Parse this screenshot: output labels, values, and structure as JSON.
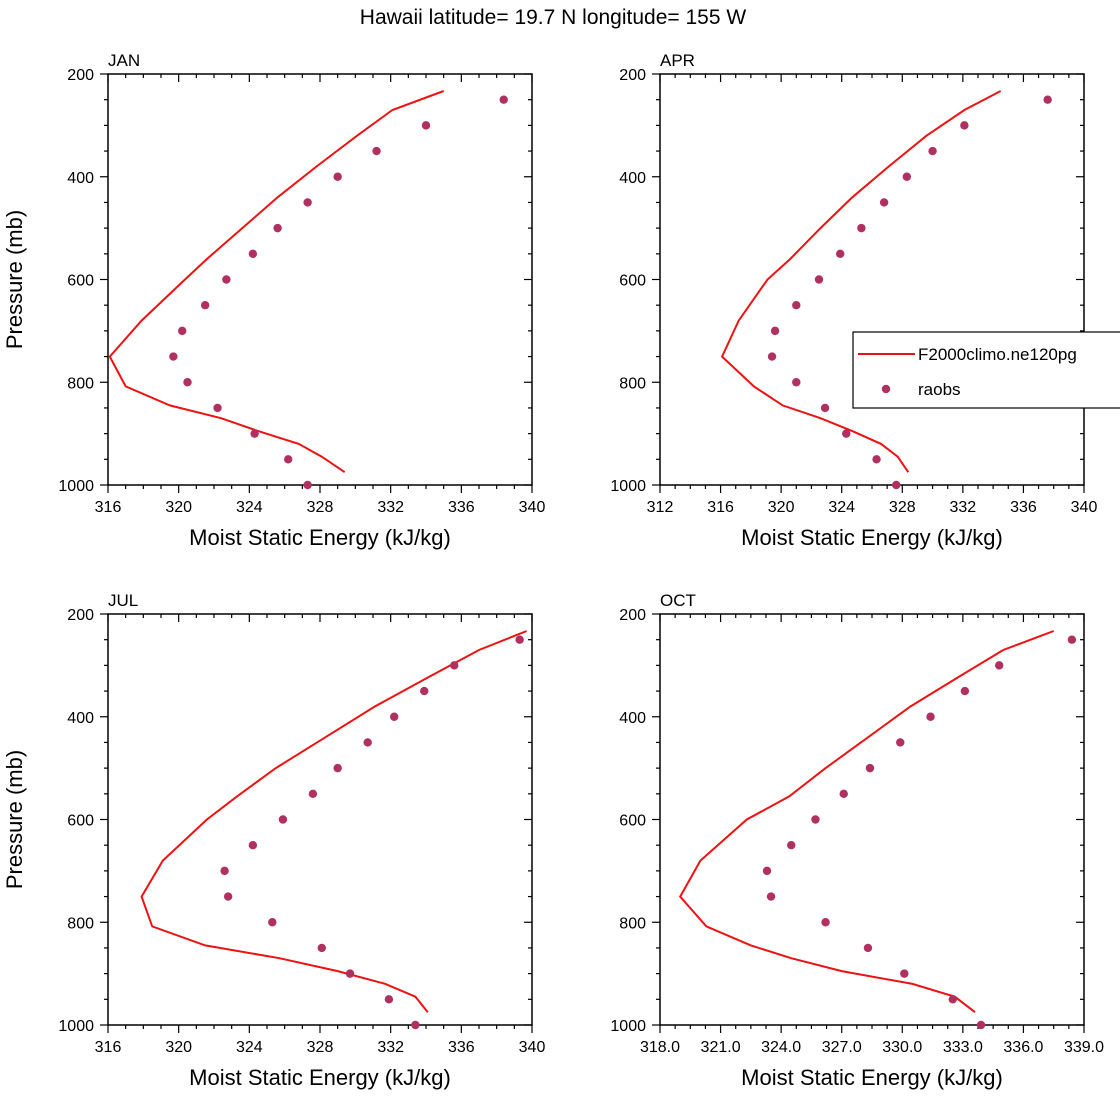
{
  "title": "Hawaii  latitude= 19.7 N longitude= 155 W",
  "colors": {
    "model": "#ee1111",
    "obs": "#b03060"
  },
  "legend": {
    "placement": "right-middle of APR panel",
    "model_label": "F2000climo.ne120pg",
    "obs_label": "raobs"
  },
  "chart_data": [
    {
      "type": "line",
      "title": "JAN",
      "xlabel": "Moist Static Energy (kJ/kg)",
      "ylabel": "Pressure (mb)",
      "xlim": [
        316,
        340
      ],
      "ylim": [
        200,
        1000
      ],
      "y_inverted": true,
      "xticks": [
        "316",
        "320",
        "324",
        "328",
        "332",
        "336",
        "340"
      ],
      "xtick_values": [
        316,
        320,
        324,
        328,
        332,
        336,
        340
      ],
      "yticks": [
        "200",
        "400",
        "600",
        "800",
        "1000"
      ],
      "ytick_values": [
        200,
        400,
        600,
        800,
        1000
      ],
      "series": [
        {
          "name": "F2000climo.ne120pg",
          "kind": "line",
          "x": [
            335.0,
            332.1,
            330.1,
            327.8,
            325.6,
            323.6,
            321.6,
            320.2,
            317.9,
            316.1,
            317.0,
            319.5,
            322.4,
            324.5,
            326.8,
            328.1,
            329.4
          ],
          "y": [
            233,
            270,
            320,
            380,
            440,
            500,
            560,
            605,
            680,
            750,
            808,
            845,
            870,
            895,
            920,
            945,
            975
          ]
        },
        {
          "name": "raobs",
          "kind": "scatter",
          "x": [
            338.4,
            334.0,
            331.2,
            329.0,
            327.3,
            325.6,
            324.2,
            322.7,
            321.5,
            320.2,
            319.7,
            320.5,
            322.2,
            324.3,
            326.2,
            327.3
          ],
          "y": [
            250,
            300,
            350,
            400,
            450,
            500,
            550,
            600,
            650,
            700,
            750,
            800,
            850,
            900,
            950,
            1000
          ]
        }
      ]
    },
    {
      "type": "line",
      "title": "APR",
      "xlabel": "Moist Static Energy (kJ/kg)",
      "ylabel": "",
      "xlim": [
        312,
        340
      ],
      "ylim": [
        200,
        1000
      ],
      "y_inverted": true,
      "xticks": [
        "312",
        "316",
        "320",
        "324",
        "328",
        "332",
        "336",
        "340"
      ],
      "xtick_values": [
        312,
        316,
        320,
        324,
        328,
        332,
        336,
        340
      ],
      "yticks": [
        "200",
        "400",
        "600",
        "800",
        "1000"
      ],
      "ytick_values": [
        200,
        400,
        600,
        800,
        1000
      ],
      "series": [
        {
          "name": "F2000climo.ne120pg",
          "kind": "line",
          "x": [
            334.5,
            332.1,
            329.6,
            327.1,
            324.7,
            322.6,
            320.6,
            319.1,
            317.2,
            316.1,
            318.2,
            320.1,
            322.6,
            324.7,
            326.6,
            327.7,
            328.4
          ],
          "y": [
            233,
            270,
            320,
            380,
            440,
            500,
            560,
            600,
            680,
            750,
            808,
            845,
            870,
            895,
            920,
            945,
            975
          ]
        },
        {
          "name": "raobs",
          "kind": "scatter",
          "x": [
            337.6,
            332.1,
            330.0,
            328.3,
            326.8,
            325.3,
            323.9,
            322.5,
            321.0,
            319.6,
            319.4,
            321.0,
            322.9,
            324.3,
            326.3,
            327.6
          ],
          "y": [
            250,
            300,
            350,
            400,
            450,
            500,
            550,
            600,
            650,
            700,
            750,
            800,
            850,
            900,
            950,
            1000
          ]
        }
      ]
    },
    {
      "type": "line",
      "title": "JUL",
      "xlabel": "Moist Static Energy (kJ/kg)",
      "ylabel": "Pressure (mb)",
      "xlim": [
        316,
        340
      ],
      "ylim": [
        200,
        1000
      ],
      "y_inverted": true,
      "xticks": [
        "316",
        "320",
        "324",
        "328",
        "332",
        "336",
        "340"
      ],
      "xtick_values": [
        316,
        320,
        324,
        328,
        332,
        336,
        340
      ],
      "yticks": [
        "200",
        "400",
        "600",
        "800",
        "1000"
      ],
      "ytick_values": [
        200,
        400,
        600,
        800,
        1000
      ],
      "series": [
        {
          "name": "F2000climo.ne120pg",
          "kind": "line",
          "x": [
            339.7,
            337.0,
            334.3,
            331.1,
            328.3,
            325.5,
            323.3,
            321.6,
            319.1,
            317.9,
            318.5,
            321.5,
            325.7,
            329.0,
            331.7,
            333.4,
            334.1
          ],
          "y": [
            233,
            270,
            320,
            380,
            440,
            500,
            555,
            600,
            680,
            750,
            808,
            845,
            870,
            895,
            920,
            945,
            975
          ]
        },
        {
          "name": "raobs",
          "kind": "scatter",
          "x": [
            339.3,
            335.6,
            333.9,
            332.2,
            330.7,
            329.0,
            327.6,
            325.9,
            324.2,
            322.6,
            322.8,
            325.3,
            328.1,
            329.7,
            331.9,
            333.4
          ],
          "y": [
            250,
            300,
            350,
            400,
            450,
            500,
            550,
            600,
            650,
            700,
            750,
            800,
            850,
            900,
            950,
            1000
          ]
        }
      ]
    },
    {
      "type": "line",
      "title": "OCT",
      "xlabel": "Moist Static Energy (kJ/kg)",
      "ylabel": "",
      "xlim": [
        318,
        339
      ],
      "ylim": [
        200,
        1000
      ],
      "y_inverted": true,
      "xticks": [
        "318.0",
        "321.0",
        "324.0",
        "327.0",
        "330.0",
        "333.0",
        "336.0",
        "339.0"
      ],
      "xtick_values": [
        318,
        321,
        324,
        327,
        330,
        333,
        336,
        339
      ],
      "yticks": [
        "200",
        "400",
        "600",
        "800",
        "1000"
      ],
      "ytick_values": [
        200,
        400,
        600,
        800,
        1000
      ],
      "series": [
        {
          "name": "F2000climo.ne120pg",
          "kind": "line",
          "x": [
            337.5,
            335.0,
            332.9,
            330.4,
            328.3,
            326.2,
            324.4,
            322.3,
            320.0,
            319.0,
            320.3,
            322.5,
            324.5,
            327.0,
            330.5,
            332.6,
            333.6
          ],
          "y": [
            233,
            270,
            320,
            380,
            440,
            500,
            555,
            600,
            680,
            750,
            808,
            845,
            870,
            895,
            920,
            945,
            975
          ]
        },
        {
          "name": "raobs",
          "kind": "scatter",
          "x": [
            338.4,
            334.8,
            333.1,
            331.4,
            329.9,
            328.4,
            327.1,
            325.7,
            324.5,
            323.3,
            323.5,
            326.2,
            328.3,
            330.1,
            332.5,
            333.9
          ],
          "y": [
            250,
            300,
            350,
            400,
            450,
            500,
            550,
            600,
            650,
            700,
            750,
            800,
            850,
            900,
            950,
            1000
          ]
        }
      ]
    }
  ]
}
